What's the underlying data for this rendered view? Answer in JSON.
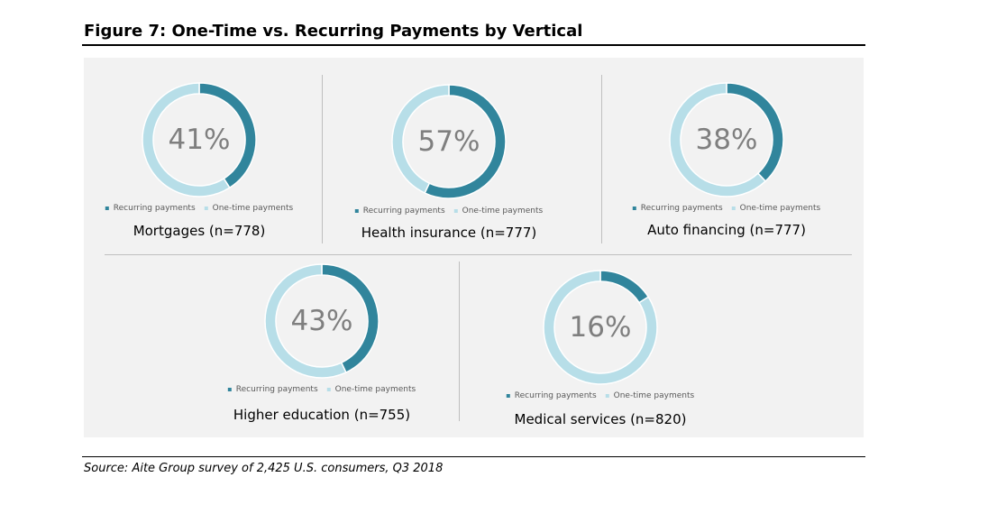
{
  "figure": {
    "title": "Figure 7: One-Time vs. Recurring Payments by Vertical",
    "source": "Source: Aite Group survey of 2,425 U.S. consumers, Q3 2018"
  },
  "colors": {
    "recurring": "#31859c",
    "one_time": "#b7dee8",
    "label": "#7f7f7f"
  },
  "chart_data": [
    {
      "type": "pie",
      "title": "Mortgages (n=778)",
      "center_label": "41%",
      "series": [
        {
          "name": "Recurring payments",
          "value": 41
        },
        {
          "name": "One-time payments",
          "value": 59
        }
      ],
      "legend": "bottom"
    },
    {
      "type": "pie",
      "title": "Health insurance (n=777)",
      "center_label": "57%",
      "series": [
        {
          "name": "Recurring payments",
          "value": 57
        },
        {
          "name": "One-time payments",
          "value": 43
        }
      ],
      "legend": "bottom"
    },
    {
      "type": "pie",
      "title": "Auto financing (n=777)",
      "center_label": "38%",
      "series": [
        {
          "name": "Recurring payments",
          "value": 38
        },
        {
          "name": "One-time payments",
          "value": 62
        }
      ],
      "legend": "bottom"
    },
    {
      "type": "pie",
      "title": "Higher education (n=755)",
      "center_label": "43%",
      "series": [
        {
          "name": "Recurring payments",
          "value": 43
        },
        {
          "name": "One-time payments",
          "value": 57
        }
      ],
      "legend": "bottom"
    },
    {
      "type": "pie",
      "title": "Medical services (n=820)",
      "center_label": "16%",
      "series": [
        {
          "name": "Recurring payments",
          "value": 16
        },
        {
          "name": "One-time payments",
          "value": 84
        }
      ],
      "legend": "bottom"
    }
  ]
}
